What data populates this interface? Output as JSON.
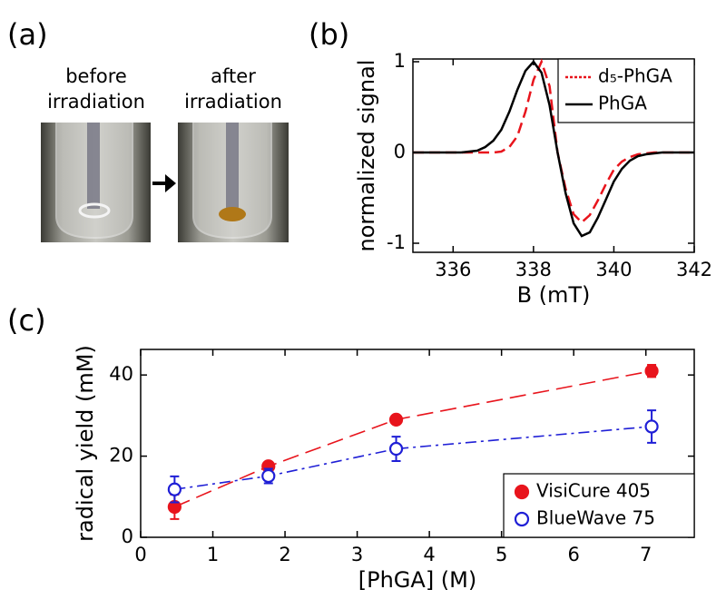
{
  "panel_a": {
    "panel_label": "(a)",
    "captions": [
      [
        "before",
        "irradiation"
      ],
      [
        "after",
        "irradiation"
      ]
    ]
  },
  "chart_data": [
    {
      "type": "line",
      "panel_label": "(b)",
      "x_label": "B (mT)",
      "y_label": "normalized signal",
      "x": [
        335.0,
        335.2,
        335.4,
        335.6,
        335.8,
        336.0,
        336.2,
        336.4,
        336.6,
        336.8,
        337.0,
        337.2,
        337.4,
        337.6,
        337.8,
        338.0,
        338.2,
        338.4,
        338.6,
        338.8,
        339.0,
        339.2,
        339.4,
        339.6,
        339.8,
        340.0,
        340.2,
        340.4,
        340.6,
        340.8,
        341.0,
        341.2,
        341.4,
        341.6,
        341.8,
        342.0
      ],
      "series": [
        {
          "name": "d₅-PhGA",
          "color": "#e8141c",
          "linestyle": "dashed",
          "values": [
            0,
            0,
            0,
            0,
            0,
            0,
            0,
            0,
            0,
            0,
            0,
            0.01,
            0.06,
            0.18,
            0.45,
            0.8,
            1,
            0.73,
            0,
            -0.4,
            -0.68,
            -0.77,
            -0.69,
            -0.53,
            -0.35,
            -0.19,
            -0.1,
            -0.05,
            -0.02,
            -0.01,
            0,
            0,
            0,
            0,
            0,
            0
          ]
        },
        {
          "name": "PhGA",
          "color": "#000000",
          "linestyle": "solid",
          "values": [
            0,
            0,
            0,
            0,
            0,
            0,
            0,
            0.01,
            0.02,
            0.06,
            0.13,
            0.25,
            0.45,
            0.69,
            0.9,
            1,
            0.88,
            0.52,
            0,
            -0.45,
            -0.78,
            -0.92,
            -0.88,
            -0.72,
            -0.52,
            -0.32,
            -0.18,
            -0.09,
            -0.04,
            -0.02,
            -0.01,
            0,
            0,
            0,
            0,
            0
          ]
        }
      ],
      "xlim": [
        335,
        342
      ],
      "xticks": [
        336,
        338,
        340,
        342
      ],
      "ylim": [
        -1.1,
        1.03
      ],
      "yticks": [
        -1,
        0,
        1
      ],
      "legend": "upper-right"
    },
    {
      "type": "scatter",
      "panel_label": "(c)",
      "x_label": "[PhGA] (M)",
      "y_label": "radical yield (mM)",
      "x": [
        0.47,
        1.77,
        3.54,
        7.08
      ],
      "series": [
        {
          "name": "VisiCure 405",
          "color": "#e8141c",
          "marker": "filled",
          "linestyle": "long-dash",
          "values": [
            7.5,
            17.5,
            29,
            41
          ],
          "errors": [
            3,
            1,
            1,
            1.5
          ]
        },
        {
          "name": "BlueWave 75",
          "color": "#1f1fd6",
          "marker": "open",
          "linestyle": "dash-dot",
          "values": [
            11.8,
            15.1,
            21.8,
            27.3
          ],
          "errors": [
            3.2,
            1.8,
            3,
            4
          ]
        }
      ],
      "xlim": [
        0,
        7.67
      ],
      "xticks": [
        0,
        1,
        2,
        3,
        4,
        5,
        6,
        7
      ],
      "ylim": [
        0,
        46.3
      ],
      "yticks": [
        0,
        20,
        40
      ],
      "legend": "lower-right"
    }
  ]
}
